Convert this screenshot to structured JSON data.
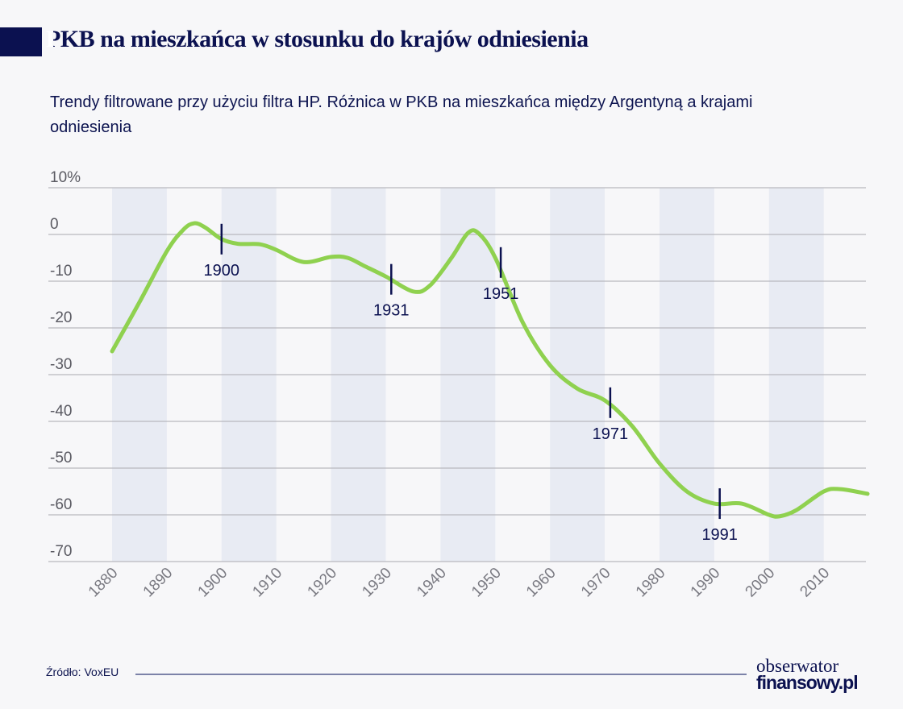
{
  "header": {
    "title_first": "P",
    "title_rest": "KB na mieszkańca w stosunku do krajów odniesienia"
  },
  "chart_data": {
    "type": "line",
    "title": "PKB na mieszkańca w stosunku do krajów odniesienia",
    "subtitle": "Trendy filtrowane przy użyciu filtra HP. Różnica w PKB na mieszkańca między Argentyną a krajami odniesienia",
    "xlim": [
      1880,
      2018
    ],
    "ylim": [
      -70,
      10
    ],
    "yticks": [
      10,
      0,
      -10,
      -20,
      -30,
      -40,
      -50,
      -60,
      -70
    ],
    "ytick_labels": [
      "10%",
      "0",
      "-10",
      "-20",
      "-30",
      "-40",
      "-50",
      "-60",
      "-70"
    ],
    "xticks": [
      1880,
      1890,
      1900,
      1910,
      1920,
      1930,
      1940,
      1950,
      1960,
      1970,
      1980,
      1990,
      2000,
      2010
    ],
    "shaded_decades": [
      [
        1880,
        1890
      ],
      [
        1900,
        1910
      ],
      [
        1920,
        1930
      ],
      [
        1940,
        1950
      ],
      [
        1960,
        1970
      ],
      [
        1980,
        1990
      ],
      [
        2000,
        2010
      ]
    ],
    "grid": true,
    "line_color": "#8fd14f",
    "series": [
      {
        "x": [
          1880,
          1885,
          1890,
          1893,
          1895,
          1897,
          1900,
          1903,
          1907,
          1910,
          1915,
          1920,
          1923,
          1926,
          1930,
          1935,
          1938,
          1942,
          1945,
          1947,
          1950,
          1955,
          1960,
          1965,
          1970,
          1975,
          1980,
          1985,
          1990,
          1995,
          2000,
          2002,
          2005,
          2010,
          2013,
          2018
        ],
        "y": [
          -25,
          -14.5,
          -3.6,
          1,
          2.4,
          1.5,
          -1,
          -2,
          -2.1,
          -3.3,
          -5.9,
          -4.8,
          -5,
          -6.7,
          -9,
          -12.2,
          -11,
          -5,
          0.3,
          0.2,
          -5,
          -18.8,
          -28,
          -33,
          -35.5,
          -41,
          -49,
          -55,
          -57.6,
          -57.6,
          -60,
          -60.3,
          -59,
          -55,
          -54.5,
          -55.5
        ]
      }
    ],
    "annotations": [
      {
        "year": 1900,
        "label": "1900",
        "y": -1
      },
      {
        "year": 1931,
        "label": "1931",
        "y": -9.6
      },
      {
        "year": 1951,
        "label": "1951",
        "y": -6
      },
      {
        "year": 1971,
        "label": "1971",
        "y": -36
      },
      {
        "year": 1991,
        "label": "1991",
        "y": -57.6
      }
    ]
  },
  "footer": {
    "source": "Źródło: VoxEU",
    "logo_line1": "obserwator",
    "logo_line2": "finansowy.pl"
  }
}
